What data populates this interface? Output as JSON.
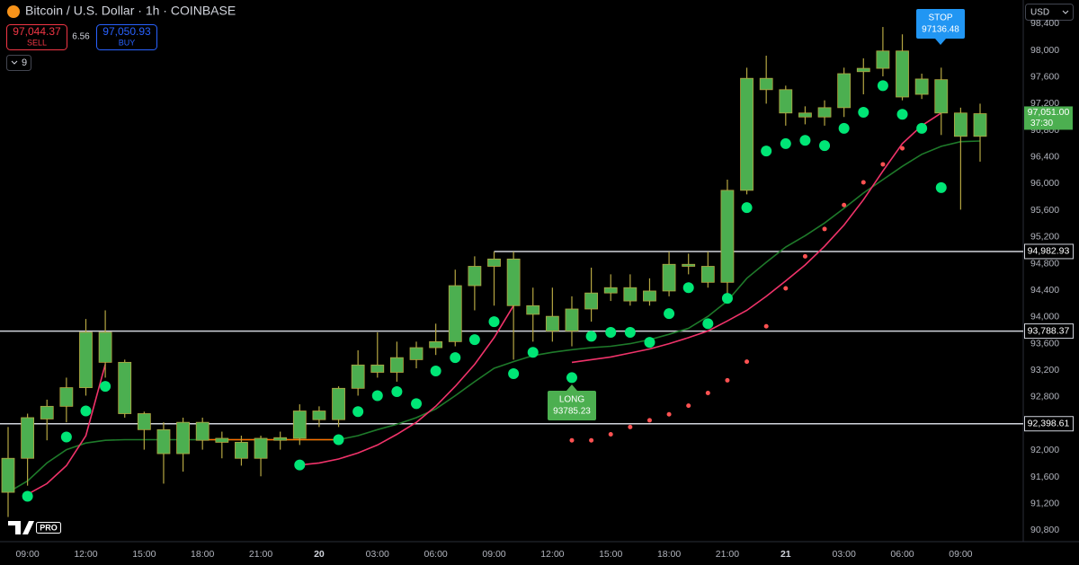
{
  "header": {
    "title": "Bitcoin / U.S. Dollar · 1h · COINBASE",
    "sell": {
      "value": 97044.37,
      "label": "97,044.37"
    },
    "sell_text": "SELL",
    "spread": 6.56,
    "buy": {
      "value": 97050.93,
      "label": "97,050.93"
    },
    "buy_text": "BUY",
    "indicators": 9,
    "currency": "USD",
    "logo": "PRO"
  },
  "chart_data": {
    "type": "candlestick",
    "categories": [
      null,
      "09:00",
      null,
      null,
      "12:00",
      null,
      null,
      "15:00",
      null,
      null,
      "18:00",
      null,
      null,
      "21:00",
      null,
      null,
      "20",
      null,
      null,
      "03:00",
      null,
      null,
      "06:00",
      null,
      null,
      "09:00",
      null,
      null,
      "12:00",
      null,
      null,
      "15:00",
      null,
      null,
      "18:00",
      null,
      null,
      "21:00",
      null,
      null,
      "21",
      null,
      null,
      "03:00",
      null,
      null,
      "06:00",
      null,
      null,
      "09:00",
      null
    ],
    "open": [
      91370,
      91880,
      92470,
      92660,
      92940,
      93770,
      93320,
      92550,
      92310,
      91950,
      92420,
      92180,
      92120,
      91880,
      92150,
      92180,
      92590,
      92460,
      92930,
      93280,
      93170,
      93360,
      93540,
      93630,
      94470,
      94760,
      94870,
      94170,
      94010,
      93790,
      94120,
      94360,
      94440,
      94240,
      94390,
      94790,
      94760,
      94520,
      95900,
      97580,
      97410,
      97060,
      97000,
      97140,
      97680,
      97730,
      97990,
      97340,
      97560,
      97060,
      96710
    ],
    "high": [
      92350,
      92550,
      92760,
      93090,
      93970,
      94100,
      93360,
      92580,
      92420,
      92490,
      92490,
      92280,
      92220,
      92220,
      92280,
      92690,
      92660,
      92960,
      93500,
      93770,
      93630,
      93630,
      93900,
      94710,
      94910,
      94980,
      94980,
      94440,
      94440,
      94310,
      94740,
      94640,
      94640,
      94580,
      94980,
      94950,
      94980,
      96060,
      97740,
      97920,
      97470,
      97160,
      97250,
      97740,
      97880,
      98350,
      98240,
      97650,
      97740,
      97140,
      97200
    ],
    "low": [
      91000,
      91470,
      92150,
      92420,
      92820,
      93090,
      92490,
      92010,
      91500,
      91680,
      92010,
      91880,
      91770,
      91610,
      92010,
      92080,
      92350,
      92350,
      92820,
      93090,
      93030,
      93230,
      93430,
      93560,
      94100,
      94170,
      93360,
      93630,
      93630,
      93560,
      93930,
      94240,
      94170,
      94170,
      94310,
      94640,
      94440,
      94310,
      95840,
      97200,
      96870,
      96890,
      96870,
      97000,
      97340,
      97610,
      97250,
      97270,
      96730,
      95610,
      96330
    ],
    "close": [
      91880,
      92490,
      92660,
      92940,
      93770,
      93320,
      92550,
      92310,
      91950,
      92420,
      92150,
      92120,
      91880,
      92180,
      92190,
      92590,
      92460,
      92930,
      93280,
      93170,
      93390,
      93540,
      93630,
      94470,
      94760,
      94870,
      94170,
      94040,
      93790,
      94120,
      94360,
      94440,
      94240,
      94390,
      94790,
      94760,
      94520,
      95900,
      97580,
      97410,
      97060,
      97000,
      97140,
      97650,
      97730,
      97990,
      97300,
      97570,
      97060,
      96710,
      97050
    ],
    "color": "#4caf50",
    "wick_color": "#b5a642",
    "ylim": [
      90630,
      98755
    ],
    "yticks": [
      {
        "value": 90800,
        "label": "90,800"
      },
      {
        "value": 91200,
        "label": "91,200"
      },
      {
        "value": 91600,
        "label": "91,600"
      },
      {
        "value": 92000,
        "label": "92,000"
      },
      {
        "value": 92400,
        "label": "92,400"
      },
      {
        "value": 92800,
        "label": "92,800"
      },
      {
        "value": 93200,
        "label": "93,200"
      },
      {
        "value": 93600,
        "label": "93,600"
      },
      {
        "value": 94000,
        "label": "94,000"
      },
      {
        "value": 94400,
        "label": "94,400"
      },
      {
        "value": 94800,
        "label": "94,800"
      },
      {
        "value": 95200,
        "label": "95,200"
      },
      {
        "value": 95600,
        "label": "95,600"
      },
      {
        "value": 96000,
        "label": "96,000"
      },
      {
        "value": 96400,
        "label": "96,400"
      },
      {
        "value": 96800,
        "label": "96,800"
      },
      {
        "value": 97200,
        "label": "97,200"
      },
      {
        "value": 97600,
        "label": "97,600"
      },
      {
        "value": 98000,
        "label": "98,000"
      },
      {
        "value": 98400,
        "label": "98,400"
      }
    ],
    "overlays": [
      {
        "style": "line",
        "color": "#1e7a2a",
        "values": [
          91370,
          91540,
          91810,
          92010,
          92110,
          92150,
          92160,
          92160,
          92160,
          92160,
          92160,
          92160,
          92160,
          92160,
          92160,
          92160,
          92160,
          92160,
          92220,
          92310,
          92390,
          92490,
          92620,
          92820,
          93030,
          93230,
          93330,
          93420,
          93470,
          93510,
          93540,
          93560,
          93600,
          93660,
          93740,
          93830,
          94010,
          94240,
          94580,
          94820,
          95050,
          95220,
          95410,
          95630,
          95860,
          96060,
          96260,
          96440,
          96560,
          96630,
          96640
        ]
      },
      {
        "style": "line",
        "color": "#ff6d00",
        "values": [
          null,
          null,
          null,
          null,
          null,
          null,
          null,
          null,
          null,
          null,
          92160,
          92160,
          92160,
          92160,
          92160,
          92160,
          92160,
          92160,
          null,
          null,
          null,
          null,
          null,
          null,
          null,
          null,
          null,
          null,
          null,
          null,
          null,
          null,
          null,
          null,
          null,
          null,
          null,
          null,
          null,
          null,
          null,
          null,
          null,
          null,
          null,
          null,
          null,
          null,
          null,
          null,
          null
        ]
      },
      {
        "style": "line",
        "color": "#f0336a",
        "values": [
          null,
          91340,
          91500,
          91770,
          92220,
          93290,
          null,
          null,
          null,
          null,
          null,
          null,
          null,
          null,
          null,
          91780,
          91810,
          91870,
          91960,
          92080,
          92240,
          92420,
          92660,
          92960,
          93290,
          93690,
          94170,
          null,
          null,
          93320,
          93360,
          93400,
          93460,
          93520,
          93600,
          93690,
          93790,
          93940,
          94100,
          94310,
          94540,
          94780,
          95060,
          95380,
          95760,
          96190,
          96600,
          96870,
          97060,
          null,
          null
        ]
      },
      {
        "style": "small-dots",
        "color": "#ff5252",
        "values": [
          null,
          null,
          null,
          null,
          null,
          null,
          null,
          null,
          null,
          null,
          null,
          null,
          null,
          null,
          null,
          null,
          null,
          null,
          null,
          null,
          null,
          null,
          null,
          null,
          null,
          null,
          null,
          null,
          null,
          92150,
          92150,
          92240,
          92350,
          92450,
          92540,
          92670,
          92860,
          93050,
          93330,
          93860,
          94430,
          94910,
          95320,
          95680,
          96020,
          96290,
          96530,
          null,
          null,
          null,
          null
        ]
      },
      {
        "style": "dots",
        "color": "#00e676",
        "values": [
          null,
          91310,
          null,
          92200,
          92590,
          92960,
          null,
          null,
          null,
          null,
          null,
          null,
          null,
          null,
          null,
          91780,
          null,
          92160,
          92580,
          92820,
          92880,
          92700,
          93190,
          93390,
          93660,
          93930,
          93150,
          93470,
          null,
          93090,
          93710,
          93770,
          93770,
          93620,
          94050,
          94440,
          93900,
          94280,
          95640,
          96490,
          96600,
          96650,
          96570,
          96830,
          97070,
          97470,
          97040,
          96830,
          95940,
          null,
          null
        ]
      }
    ],
    "levels": [
      {
        "value": 94982.93,
        "label": "94,982.93"
      },
      {
        "value": 93788.37,
        "label": "93,788.37"
      },
      {
        "value": 92398.61,
        "label": "92,398.61"
      }
    ],
    "last_price": {
      "value": 97051.0,
      "label": "97,051.00"
    },
    "countdown": "37:30",
    "signals": [
      {
        "text": "STOP",
        "price": 97136.48,
        "color": "#2196f3"
      },
      {
        "text": "LONG",
        "price": 93785.23,
        "color": "#4caf50"
      }
    ]
  }
}
